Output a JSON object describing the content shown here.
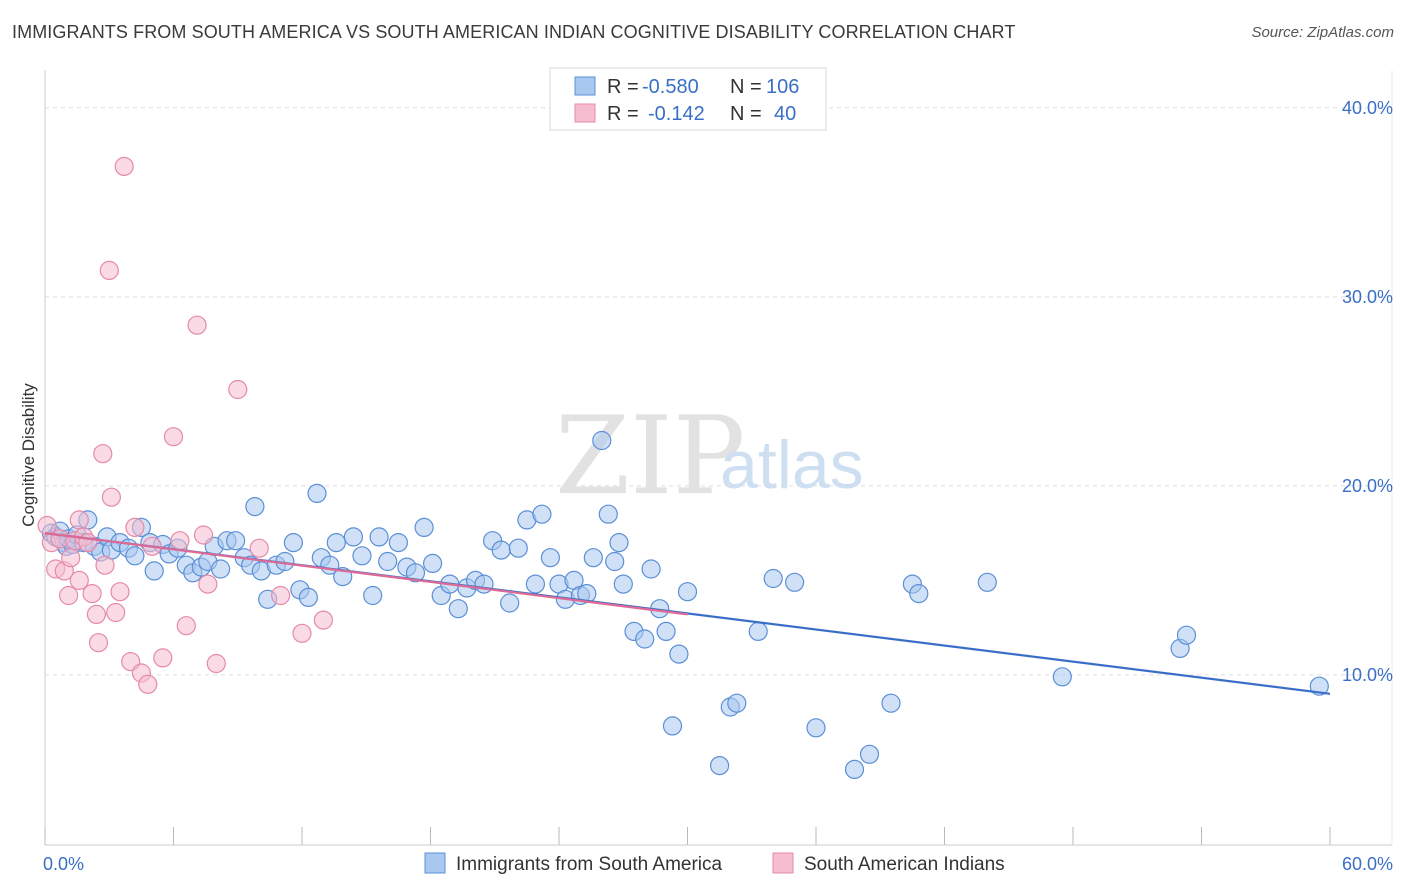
{
  "title": "IMMIGRANTS FROM SOUTH AMERICA VS SOUTH AMERICAN INDIAN COGNITIVE DISABILITY CORRELATION CHART",
  "source": "Source: ZipAtlas.com",
  "watermark": {
    "zip": "ZIP",
    "atlas": "atlas"
  },
  "colors": {
    "blue_fill": "#a9c8f0",
    "blue_stroke": "#5b8fd6",
    "blue_line": "#3a6fc7",
    "pink_fill": "#f6bdd0",
    "pink_stroke": "#e58aa9",
    "pink_line": "#de6a95",
    "grid": "#dddddd",
    "axis_text": "#3a6fc7"
  },
  "stats": [
    {
      "r_label": "R =",
      "r_value": "-0.580",
      "n_label": "N =",
      "n_value": "106",
      "color": "blue"
    },
    {
      "r_label": "R =",
      "r_value": "-0.142",
      "n_label": "N =",
      "n_value": "40",
      "color": "pink"
    }
  ],
  "chart_data": {
    "type": "scatter",
    "title": "IMMIGRANTS FROM SOUTH AMERICA VS SOUTH AMERICAN INDIAN COGNITIVE DISABILITY CORRELATION CHART",
    "xlabel": "",
    "ylabel": "Cognitive Disability",
    "xlim": [
      0,
      60
    ],
    "ylim": [
      1,
      42
    ],
    "x_tick_labels": [
      "0.0%",
      "60.0%"
    ],
    "y_ticks": [
      10,
      20,
      30,
      40
    ],
    "y_tick_labels": [
      "10.0%",
      "20.0%",
      "30.0%",
      "40.0%"
    ],
    "grid": true,
    "legend_position": "bottom",
    "series": [
      {
        "name": "Immigrants from South America",
        "color": "blue",
        "trend": {
          "x": [
            0,
            60
          ],
          "y": [
            17.5,
            9.0
          ]
        },
        "points": [
          [
            0.3,
            17.5
          ],
          [
            0.5,
            17.3
          ],
          [
            0.7,
            17.6
          ],
          [
            0.9,
            17.0
          ],
          [
            1.0,
            16.8
          ],
          [
            1.1,
            17.2
          ],
          [
            1.3,
            16.9
          ],
          [
            1.5,
            17.4
          ],
          [
            1.8,
            17.0
          ],
          [
            2.0,
            18.2
          ],
          [
            2.3,
            16.8
          ],
          [
            2.6,
            16.5
          ],
          [
            2.9,
            17.3
          ],
          [
            3.1,
            16.6
          ],
          [
            3.5,
            17.0
          ],
          [
            3.9,
            16.7
          ],
          [
            4.2,
            16.3
          ],
          [
            4.5,
            17.8
          ],
          [
            4.9,
            17.0
          ],
          [
            5.1,
            15.5
          ],
          [
            5.5,
            16.9
          ],
          [
            5.8,
            16.4
          ],
          [
            6.2,
            16.7
          ],
          [
            6.6,
            15.8
          ],
          [
            6.9,
            15.4
          ],
          [
            7.3,
            15.7
          ],
          [
            7.6,
            16.0
          ],
          [
            7.9,
            16.8
          ],
          [
            8.2,
            15.6
          ],
          [
            8.5,
            17.1
          ],
          [
            8.9,
            17.1
          ],
          [
            9.3,
            16.2
          ],
          [
            9.6,
            15.8
          ],
          [
            9.8,
            18.9
          ],
          [
            10.1,
            15.5
          ],
          [
            10.4,
            14.0
          ],
          [
            10.8,
            15.8
          ],
          [
            11.2,
            16.0
          ],
          [
            11.6,
            17.0
          ],
          [
            11.9,
            14.5
          ],
          [
            12.3,
            14.1
          ],
          [
            12.7,
            19.6
          ],
          [
            12.9,
            16.2
          ],
          [
            13.3,
            15.8
          ],
          [
            13.6,
            17.0
          ],
          [
            13.9,
            15.2
          ],
          [
            14.4,
            17.3
          ],
          [
            14.8,
            16.3
          ],
          [
            15.3,
            14.2
          ],
          [
            15.6,
            17.3
          ],
          [
            16.0,
            16.0
          ],
          [
            16.5,
            17.0
          ],
          [
            16.9,
            15.7
          ],
          [
            17.3,
            15.4
          ],
          [
            17.7,
            17.8
          ],
          [
            18.1,
            15.9
          ],
          [
            18.5,
            14.2
          ],
          [
            18.9,
            14.8
          ],
          [
            19.3,
            13.5
          ],
          [
            19.7,
            14.6
          ],
          [
            20.1,
            15.0
          ],
          [
            20.5,
            14.8
          ],
          [
            20.9,
            17.1
          ],
          [
            21.3,
            16.6
          ],
          [
            21.7,
            13.8
          ],
          [
            22.1,
            16.7
          ],
          [
            22.5,
            18.2
          ],
          [
            22.9,
            14.8
          ],
          [
            23.2,
            18.5
          ],
          [
            23.6,
            16.2
          ],
          [
            24.0,
            14.8
          ],
          [
            24.3,
            14.0
          ],
          [
            24.7,
            15.0
          ],
          [
            25.0,
            14.2
          ],
          [
            25.3,
            14.3
          ],
          [
            25.6,
            16.2
          ],
          [
            26.0,
            22.4
          ],
          [
            26.3,
            18.5
          ],
          [
            26.6,
            16.0
          ],
          [
            26.8,
            17.0
          ],
          [
            27.0,
            14.8
          ],
          [
            27.5,
            12.3
          ],
          [
            28.0,
            11.9
          ],
          [
            28.3,
            15.6
          ],
          [
            28.7,
            13.5
          ],
          [
            29.0,
            12.3
          ],
          [
            29.3,
            7.3
          ],
          [
            29.6,
            11.1
          ],
          [
            30.0,
            14.4
          ],
          [
            31.5,
            5.2
          ],
          [
            32.0,
            8.3
          ],
          [
            32.3,
            8.5
          ],
          [
            33.3,
            12.3
          ],
          [
            34.0,
            15.1
          ],
          [
            35.0,
            14.9
          ],
          [
            36.0,
            7.2
          ],
          [
            37.8,
            5.0
          ],
          [
            38.5,
            5.8
          ],
          [
            39.5,
            8.5
          ],
          [
            40.5,
            14.8
          ],
          [
            40.8,
            14.3
          ],
          [
            44.0,
            14.9
          ],
          [
            47.5,
            9.9
          ],
          [
            53.0,
            11.4
          ],
          [
            53.3,
            12.1
          ],
          [
            59.5,
            9.4
          ]
        ]
      },
      {
        "name": "South American Indians",
        "color": "pink",
        "trend": {
          "x": [
            0,
            30
          ],
          "y": [
            17.5,
            13.2
          ]
        },
        "points": [
          [
            0.1,
            17.9
          ],
          [
            0.3,
            17.0
          ],
          [
            0.5,
            15.6
          ],
          [
            0.7,
            17.2
          ],
          [
            0.9,
            15.5
          ],
          [
            1.1,
            14.2
          ],
          [
            1.2,
            16.2
          ],
          [
            1.4,
            17.1
          ],
          [
            1.6,
            15.0
          ],
          [
            1.6,
            18.2
          ],
          [
            1.8,
            17.3
          ],
          [
            2.0,
            17.0
          ],
          [
            2.2,
            14.3
          ],
          [
            2.4,
            13.2
          ],
          [
            2.5,
            11.7
          ],
          [
            2.7,
            21.7
          ],
          [
            2.8,
            15.8
          ],
          [
            3.0,
            31.4
          ],
          [
            3.1,
            19.4
          ],
          [
            3.3,
            13.3
          ],
          [
            3.5,
            14.4
          ],
          [
            3.7,
            36.9
          ],
          [
            4.0,
            10.7
          ],
          [
            4.2,
            17.8
          ],
          [
            4.5,
            10.1
          ],
          [
            4.8,
            9.5
          ],
          [
            5.0,
            16.8
          ],
          [
            5.5,
            10.9
          ],
          [
            6.0,
            22.6
          ],
          [
            6.3,
            17.1
          ],
          [
            6.6,
            12.6
          ],
          [
            7.1,
            28.5
          ],
          [
            7.4,
            17.4
          ],
          [
            7.6,
            14.8
          ],
          [
            8.0,
            10.6
          ],
          [
            9.0,
            25.1
          ],
          [
            10.0,
            16.7
          ],
          [
            11.0,
            14.2
          ],
          [
            12.0,
            12.2
          ],
          [
            13.0,
            12.9
          ]
        ]
      }
    ]
  }
}
